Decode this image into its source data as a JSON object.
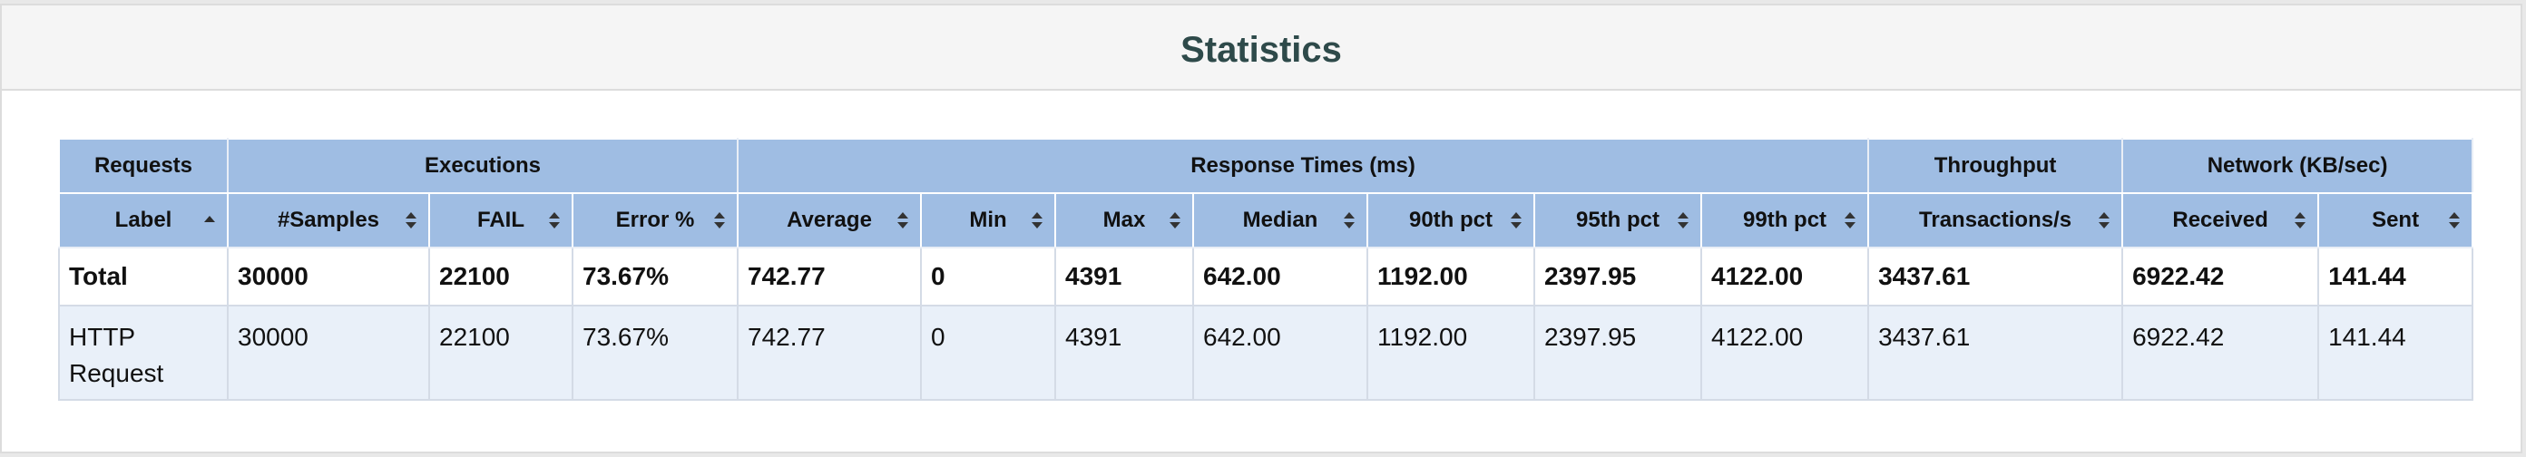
{
  "panel": {
    "title": "Statistics"
  },
  "groups": [
    {
      "label": "Requests",
      "span": 1
    },
    {
      "label": "Executions",
      "span": 3
    },
    {
      "label": "Response Times (ms)",
      "span": 7
    },
    {
      "label": "Throughput",
      "span": 1
    },
    {
      "label": "Network (KB/sec)",
      "span": 2
    }
  ],
  "columns": [
    {
      "label": "Label",
      "sort": "asc"
    },
    {
      "label": "#Samples",
      "sort": "both"
    },
    {
      "label": "FAIL",
      "sort": "both"
    },
    {
      "label": "Error %",
      "sort": "both"
    },
    {
      "label": "Average",
      "sort": "both"
    },
    {
      "label": "Min",
      "sort": "both"
    },
    {
      "label": "Max",
      "sort": "both"
    },
    {
      "label": "Median",
      "sort": "both"
    },
    {
      "label": "90th pct",
      "sort": "both"
    },
    {
      "label": "95th pct",
      "sort": "both"
    },
    {
      "label": "99th pct",
      "sort": "both"
    },
    {
      "label": "Transactions/s",
      "sort": "both"
    },
    {
      "label": "Received",
      "sort": "both"
    },
    {
      "label": "Sent",
      "sort": "both"
    }
  ],
  "total_row": [
    "Total",
    "30000",
    "22100",
    "73.67%",
    "742.77",
    "0",
    "4391",
    "642.00",
    "1192.00",
    "2397.95",
    "4122.00",
    "3437.61",
    "6922.42",
    "141.44"
  ],
  "rows": [
    [
      "HTTP Request",
      "30000",
      "22100",
      "73.67%",
      "742.77",
      "0",
      "4391",
      "642.00",
      "1192.00",
      "2397.95",
      "4122.00",
      "3437.61",
      "6922.42",
      "141.44"
    ]
  ],
  "colors": {
    "header_bg": "#9fbde3",
    "row_alt_bg": "#e9f0f9",
    "title_color": "#2e4a4a"
  },
  "icons": {
    "sort_asc": "sort-up-icon",
    "sort_both": "sort-both-icon"
  }
}
